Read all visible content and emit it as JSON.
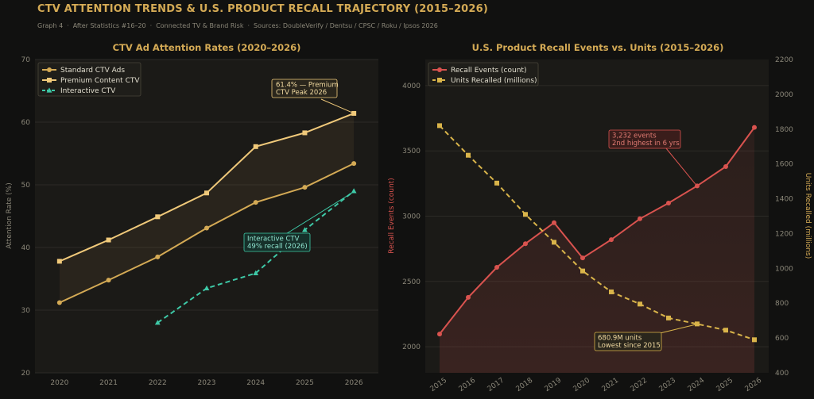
{
  "header": {
    "title": "CTV ATTENTION TRENDS & U.S. PRODUCT RECALL TRAJECTORY (2015–2026)",
    "subtitle_parts": [
      "Graph 4",
      "After Statistics #16–20",
      "Connected TV & Brand Risk",
      "Sources: DoubleVerify / Dentsu / CPSC / Roku / Ipsos 2026"
    ]
  },
  "colors": {
    "background": "#111110",
    "panel": "#1b1a17",
    "gold": "#d4aa55",
    "standard": "#d4aa55",
    "premium": "#f0c97a",
    "interactive": "#3ec9a7",
    "recall": "#d9534f",
    "units": "#d9b44a"
  },
  "chart_data": [
    {
      "type": "line",
      "title": "CTV Ad Attention Rates (2020–2026)",
      "xlabel": "",
      "ylabel": "Attention Rate (%)",
      "x": [
        2020,
        2021,
        2022,
        2023,
        2024,
        2025,
        2026
      ],
      "ylim": [
        20,
        70
      ],
      "yticks": [
        20,
        30,
        40,
        50,
        60,
        70
      ],
      "grid": true,
      "legend_position": "top-left",
      "series": [
        {
          "name": "Standard CTV Ads",
          "values": [
            31.2,
            34.8,
            38.5,
            43.1,
            47.2,
            49.6,
            53.4
          ],
          "marker": "circle",
          "style": "solid"
        },
        {
          "name": "Premium Content CTV",
          "values": [
            37.8,
            41.2,
            44.9,
            48.7,
            56.1,
            58.3,
            61.4
          ],
          "marker": "square",
          "style": "solid"
        },
        {
          "name": "Interactive CTV",
          "values": [
            null,
            null,
            28.0,
            33.5,
            35.9,
            42.8,
            49.0
          ],
          "marker": "triangle",
          "style": "dashed"
        }
      ],
      "annotations": [
        {
          "text_lines": [
            "61.4% — Premium",
            "CTV Peak 2026"
          ],
          "target_x": 2026,
          "target_y": 61.4
        },
        {
          "text_lines": [
            "Interactive CTV",
            "49% recall (2026)"
          ],
          "target_x": 2026,
          "target_y": 49.0
        }
      ]
    },
    {
      "type": "line",
      "title": "U.S. Product Recall Events vs. Units (2015–2026)",
      "xlabel": "",
      "ylabel": "Recall Events (count)",
      "y2label": "Units Recalled (millions)",
      "x": [
        2015,
        2016,
        2017,
        2018,
        2019,
        2020,
        2021,
        2022,
        2023,
        2024,
        2025,
        2026
      ],
      "ylim": [
        1800,
        4200
      ],
      "yticks": [
        2000,
        2500,
        3000,
        3500,
        4000
      ],
      "y2lim": [
        400,
        2200
      ],
      "y2ticks": [
        400,
        600,
        800,
        1000,
        1200,
        1400,
        1600,
        1800,
        2000,
        2200
      ],
      "grid": true,
      "legend_position": "top-left",
      "series": [
        {
          "name": "Recall Events (count)",
          "axis": "left",
          "values": [
            2097,
            2378,
            2608,
            2789,
            2950,
            2680,
            2820,
            2980,
            3100,
            3232,
            3380,
            3680
          ],
          "marker": "circle",
          "style": "solid"
        },
        {
          "name": "Units Recalled (millions)",
          "axis": "right",
          "values": [
            1820,
            1650,
            1490,
            1310,
            1150,
            985,
            865,
            795,
            715,
            680.9,
            645,
            590
          ],
          "marker": "square",
          "style": "dashed"
        }
      ],
      "annotations": [
        {
          "text_lines": [
            "3,232 events",
            "2nd highest in 6 yrs"
          ],
          "target_x": 2024,
          "target_y": 3232
        },
        {
          "text_lines": [
            "680.9M units",
            "Lowest since 2015"
          ],
          "target_x": 2024,
          "target_y": 680.9
        }
      ]
    }
  ]
}
